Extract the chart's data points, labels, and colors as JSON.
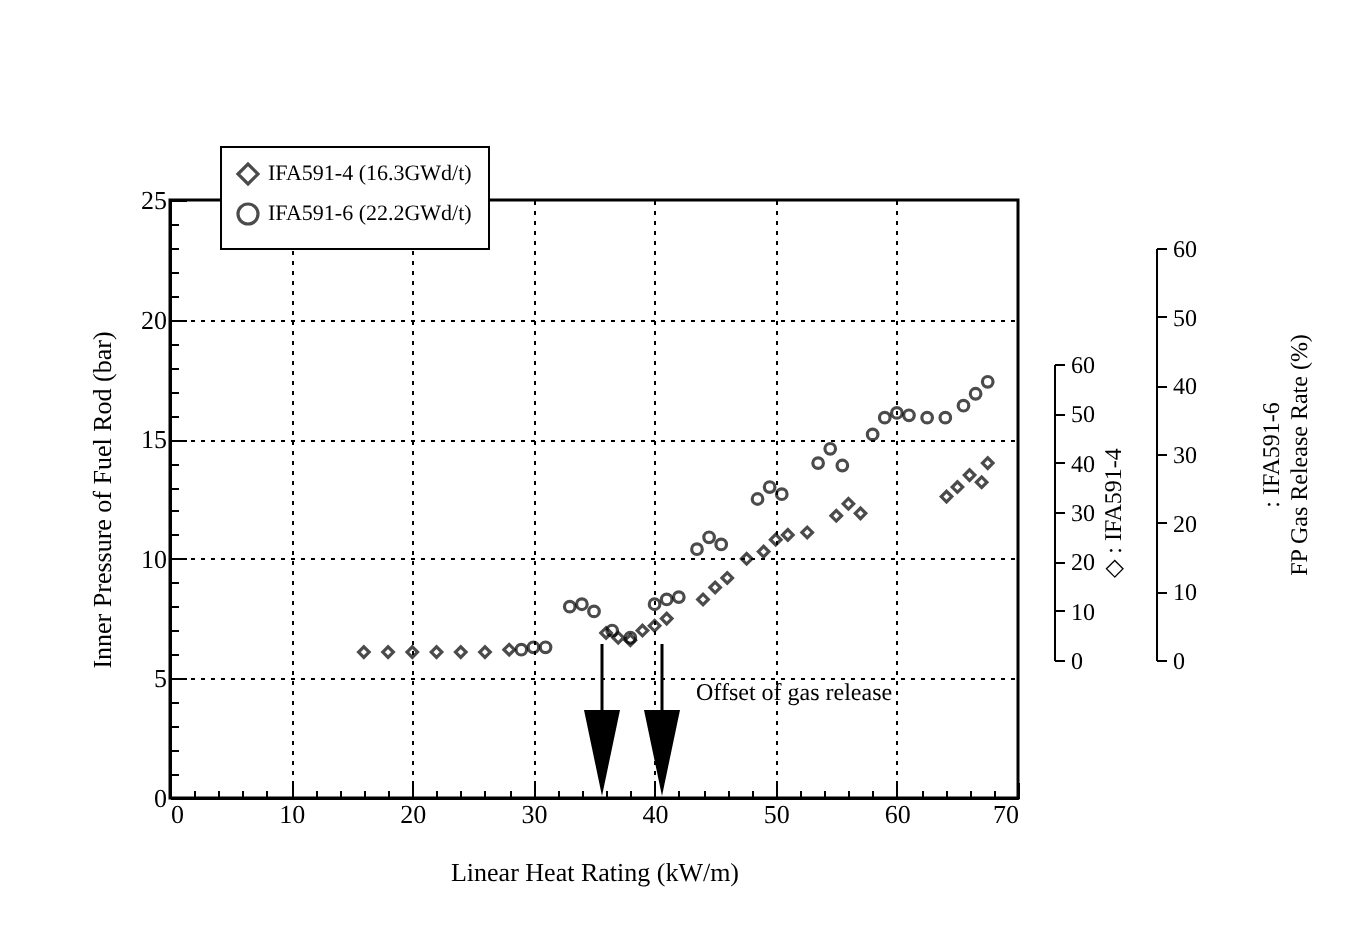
{
  "chart_data": {
    "type": "scatter",
    "xlabel": "Linear Heat Rating (kW/m)",
    "ylabel": "Inner Pressure of Fuel Rod (bar)",
    "y2label": "◇ : IFA591-4",
    "y3label": ": IFA591-6",
    "xlim": [
      0,
      70
    ],
    "ylim": [
      0,
      25
    ],
    "y2lim": [
      0,
      60
    ],
    "y3lim": [
      0,
      60
    ],
    "xticks": [
      0,
      {
        "value": 2,
        "label": null
      },
      {
        "value": 4,
        "label": null
      },
      {
        "value": 6,
        "label": null
      },
      {
        "value": 8,
        "label": null
      },
      10,
      {
        "value": 12,
        "label": null
      },
      {
        "value": 14,
        "label": null
      },
      {
        "value": 16,
        "label": null
      },
      {
        "value": 18,
        "label": null
      },
      20,
      {
        "value": 22,
        "label": null
      },
      {
        "value": 24,
        "label": null
      },
      {
        "value": 26,
        "label": null
      },
      {
        "value": 28,
        "label": null
      },
      30,
      {
        "value": 32,
        "label": null
      },
      {
        "value": 34,
        "label": null
      },
      {
        "value": 36,
        "label": null
      },
      {
        "value": 38,
        "label": null
      },
      40,
      {
        "value": 42,
        "label": null
      },
      {
        "value": 44,
        "label": null
      },
      {
        "value": 46,
        "label": null
      },
      {
        "value": 48,
        "label": null
      },
      50,
      {
        "value": 52,
        "label": null
      },
      {
        "value": 54,
        "label": null
      },
      {
        "value": 56,
        "label": null
      },
      {
        "value": 58,
        "label": null
      },
      60,
      {
        "value": 62,
        "label": null
      },
      {
        "value": 64,
        "label": null
      },
      {
        "value": 66,
        "label": null
      },
      {
        "value": 68,
        "label": null
      },
      70
    ],
    "yticks": [
      0,
      {
        "value": 1,
        "label": null
      },
      {
        "value": 2,
        "label": null
      },
      {
        "value": 3,
        "label": null
      },
      {
        "value": 4,
        "label": null
      },
      5,
      {
        "value": 6,
        "label": null
      },
      {
        "value": 7,
        "label": null
      },
      {
        "value": 8,
        "label": null
      },
      {
        "value": 9,
        "label": null
      },
      10,
      {
        "value": 11,
        "label": null
      },
      {
        "value": 12,
        "label": null
      },
      {
        "value": 13,
        "label": null
      },
      {
        "value": 14,
        "label": null
      },
      15,
      {
        "value": 16,
        "label": null
      },
      {
        "value": 17,
        "label": null
      },
      {
        "value": 18,
        "label": null
      },
      {
        "value": 19,
        "label": null
      },
      20,
      {
        "value": 21,
        "label": null
      },
      {
        "value": 22,
        "label": null
      },
      {
        "value": 23,
        "label": null
      },
      {
        "value": 24,
        "label": null
      },
      25
    ],
    "y2ticks": [
      0,
      10,
      20,
      30,
      40,
      50,
      60
    ],
    "y3ticks": [
      0,
      10,
      20,
      30,
      40,
      50,
      60
    ],
    "grid": true,
    "legend": "top left",
    "annotations": [
      "Offset of gas release",
      "FP Gas Release Rate (%)"
    ],
    "series": [
      {
        "name": "IFA591-4 (16.3GWd/t)",
        "color": "#000000",
        "marker": "diamond",
        "x": [
          16,
          18,
          20,
          22,
          24,
          26,
          28,
          36,
          37,
          38,
          39,
          40,
          41,
          44,
          45,
          46,
          47.6,
          49,
          50,
          51,
          52.6,
          55,
          56,
          57,
          64.1,
          65,
          66,
          67,
          67.5
        ],
        "values": [
          6.1,
          6.1,
          6.1,
          6.1,
          6.1,
          6.1,
          6.2,
          6.9,
          6.7,
          6.6,
          7.0,
          7.2,
          7.5,
          8.3,
          8.8,
          9.2,
          10.0,
          10.3,
          10.8,
          11.0,
          11.1,
          11.8,
          12.3,
          11.9,
          12.6,
          13.0,
          13.5,
          13.2,
          14.0
        ]
      },
      {
        "name": "IFA591-6 (22.2GWd/t)",
        "color": "#000000",
        "marker": "circle",
        "x": [
          29,
          30,
          31,
          33,
          34,
          35,
          36.5,
          38,
          40,
          41,
          42,
          43.5,
          44.5,
          45.5,
          48.5,
          49.5,
          50.5,
          53.5,
          54.5,
          55.5,
          58,
          59,
          60,
          61,
          62.5,
          64,
          65.5,
          66.5,
          67.5
        ],
        "values": [
          6.2,
          6.3,
          6.3,
          8.0,
          8.1,
          7.8,
          7.0,
          6.7,
          8.1,
          8.3,
          8.4,
          10.4,
          10.9,
          10.6,
          12.5,
          13.0,
          12.7,
          14.0,
          14.6,
          13.9,
          15.2,
          15.9,
          16.1,
          16.0,
          15.9,
          15.9,
          16.4,
          16.9,
          17.4
        ]
      }
    ]
  }
}
